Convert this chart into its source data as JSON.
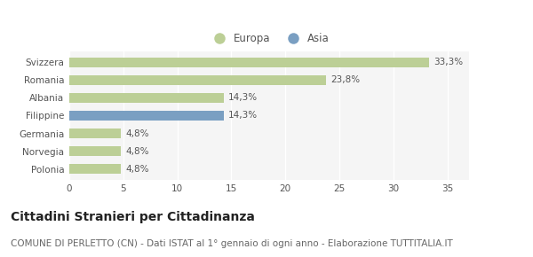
{
  "categories": [
    "Polonia",
    "Norvegia",
    "Germania",
    "Filippine",
    "Albania",
    "Romania",
    "Svizzera"
  ],
  "values": [
    4.8,
    4.8,
    4.8,
    14.3,
    14.3,
    23.8,
    33.3
  ],
  "labels": [
    "4,8%",
    "4,8%",
    "4,8%",
    "14,3%",
    "14,3%",
    "23,8%",
    "33,3%"
  ],
  "colors": [
    "#bccf96",
    "#bccf96",
    "#bccf96",
    "#7a9fc2",
    "#bccf96",
    "#bccf96",
    "#bccf96"
  ],
  "legend_europa_color": "#bccf96",
  "legend_asia_color": "#7a9fc2",
  "xlim": [
    0,
    37
  ],
  "xticks": [
    0,
    5,
    10,
    15,
    20,
    25,
    30,
    35
  ],
  "title": "Cittadini Stranieri per Cittadinanza",
  "subtitle": "COMUNE DI PERLETTO (CN) - Dati ISTAT al 1° gennaio di ogni anno - Elaborazione TUTTITALIA.IT",
  "background_color": "#ffffff",
  "plot_bg_color": "#f5f5f5",
  "grid_color": "#ffffff",
  "bar_height": 0.55,
  "title_fontsize": 10,
  "subtitle_fontsize": 7.5,
  "label_fontsize": 7.5,
  "tick_fontsize": 7.5,
  "legend_fontsize": 8.5
}
